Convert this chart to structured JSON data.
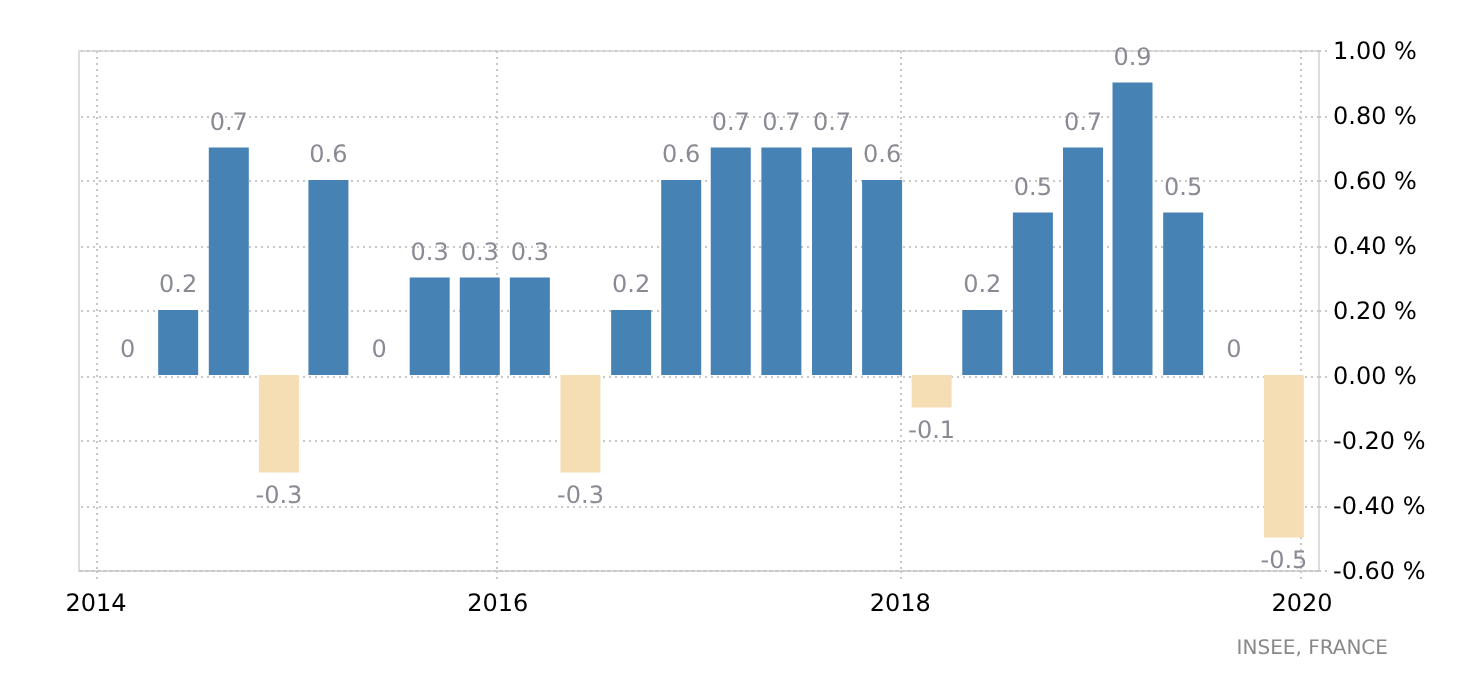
{
  "chart_data": {
    "type": "bar",
    "x": [
      "2014-03",
      "2014-06",
      "2014-09",
      "2014-12",
      "2015-03",
      "2015-06",
      "2015-09",
      "2015-12",
      "2016-03",
      "2016-06",
      "2016-09",
      "2016-12",
      "2017-03",
      "2017-06",
      "2017-09",
      "2017-12",
      "2018-03",
      "2018-06",
      "2018-09",
      "2018-12",
      "2019-03",
      "2019-06",
      "2019-09",
      "2019-12"
    ],
    "values": [
      0,
      0.2,
      0.7,
      -0.3,
      0.6,
      0,
      0.3,
      0.3,
      0.3,
      -0.3,
      0.2,
      0.6,
      0.7,
      0.7,
      0.7,
      0.6,
      -0.1,
      0.2,
      0.5,
      0.7,
      0.9,
      0.5,
      0,
      -0.5
    ],
    "colors": [
      "#4682b4",
      "#4682b4",
      "#4682b4",
      "#f5deb3",
      "#4682b4",
      "#4682b4",
      "#4682b4",
      "#4682b4",
      "#4682b4",
      "#f5deb3",
      "#4682b4",
      "#4682b4",
      "#4682b4",
      "#4682b4",
      "#4682b4",
      "#4682b4",
      "#f5deb3",
      "#4682b4",
      "#4682b4",
      "#4682b4",
      "#4682b4",
      "#4682b4",
      "#4682b4",
      "#f5deb3"
    ],
    "data_labels": true,
    "xlim": [
      "2013-12",
      "2020-02"
    ],
    "xticks": [
      "2014",
      "2016",
      "2018",
      "2020"
    ],
    "ylim": [
      -0.6,
      1.0
    ],
    "yticks": [
      {
        "value": -0.6,
        "label": "-0.60 %"
      },
      {
        "value": -0.4,
        "label": "-0.40 %"
      },
      {
        "value": -0.2,
        "label": "-0.20 %"
      },
      {
        "value": 0,
        "label": "0.00 %"
      },
      {
        "value": 0.2,
        "label": "0.20 %"
      },
      {
        "value": 0.4,
        "label": "0.40 %"
      },
      {
        "value": 0.6,
        "label": "0.60 %"
      },
      {
        "value": 0.8,
        "label": "0.80 %"
      },
      {
        "value": 1.0,
        "label": "1.00 %"
      }
    ],
    "grid": true,
    "annotations": [
      "INSEE, FRANCE"
    ]
  }
}
